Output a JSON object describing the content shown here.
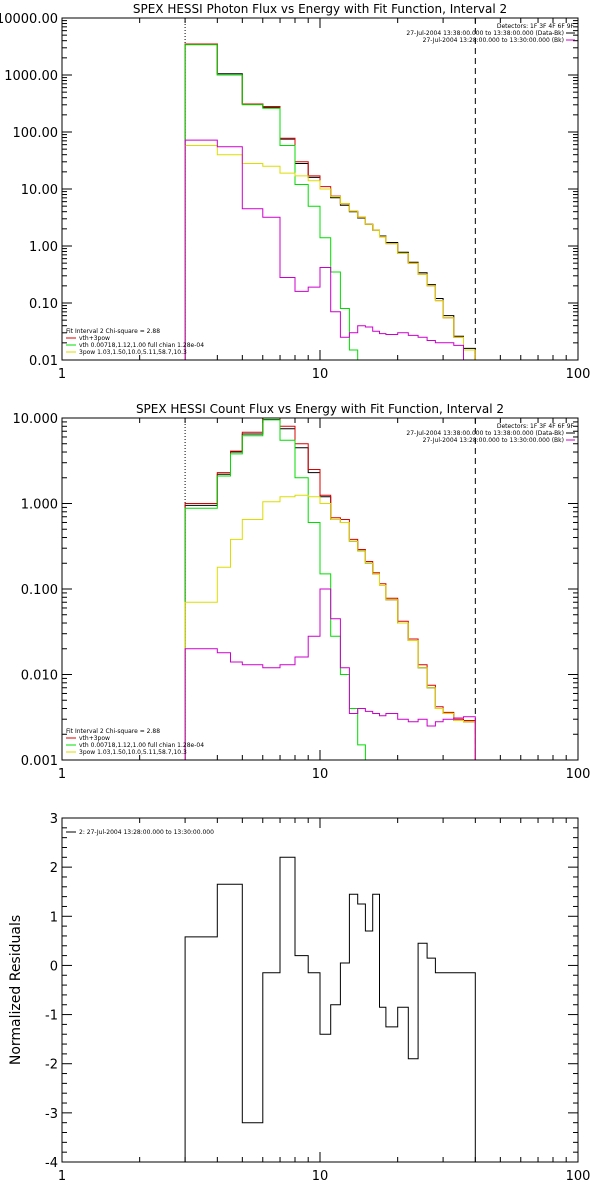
{
  "chart_data": [
    {
      "type": "line",
      "title": "SPEX HESSI Photon Flux vs Energy with Fit Function, Interval 2",
      "xscale": "log",
      "yscale": "log",
      "xlim": [
        1,
        100
      ],
      "ylim": [
        0.01,
        10000
      ],
      "x_ticks": [
        "1",
        "10",
        "100"
      ],
      "y_ticks": [
        {
          "v": 0.01,
          "label": "0.01"
        },
        {
          "v": 0.1,
          "label": "0.10"
        },
        {
          "v": 1,
          "label": "1.00"
        },
        {
          "v": 10,
          "label": "10.00"
        },
        {
          "v": 100,
          "label": "100.00"
        },
        {
          "v": 1000,
          "label": "1000.00"
        },
        {
          "v": 10000,
          "label": "10000.00"
        }
      ],
      "legend_right": [
        {
          "text": "Detectors: 1F 3F 4F 6F 9F",
          "color": ""
        },
        {
          "text": "27-Jul-2004 13:38:00.000 to 13:38:00.000 (Data-Bk)",
          "color": "#000000"
        },
        {
          "text": "27-Jul-2004 13:28:00.000 to 13:30:00.000 (Bk)",
          "color": "#cc00cc"
        }
      ],
      "legend_left": [
        {
          "text": "Fit Interval 2   Chi-square = 2.88",
          "color": ""
        },
        {
          "text": "vth+3pow",
          "color": "#dd0000"
        },
        {
          "text": "vth 0.00718,1.12,1.00  full chian 1.28e-04",
          "color": "#00dd00"
        },
        {
          "text": "3pow 1.03,1.50,10.0,5.11,58.7,10.3",
          "color": "#dddd00"
        }
      ],
      "vlines": [
        {
          "x": 3,
          "style": "dotted"
        },
        {
          "x": 40,
          "style": "dashed"
        }
      ],
      "edges": [
        3,
        4,
        5,
        6,
        7,
        8,
        9,
        10,
        11,
        12,
        13,
        14,
        15,
        16,
        17,
        18,
        20,
        22,
        24,
        26,
        28,
        30,
        33,
        36,
        40
      ],
      "series": [
        {
          "color": "#000000",
          "values": [
            3500,
            1050,
            310,
            270,
            75,
            28,
            16,
            10,
            7,
            5.2,
            4.0,
            3.1,
            2.4,
            1.9,
            1.5,
            1.15,
            0.78,
            0.52,
            0.34,
            0.21,
            0.12,
            0.06,
            0.026,
            0.016
          ]
        },
        {
          "color": "#dd0000",
          "values": [
            3500,
            1000,
            310,
            280,
            78,
            30,
            17,
            11,
            7.5,
            5.5,
            4.1,
            3.2,
            2.4,
            1.9,
            1.45,
            1.1,
            0.74,
            0.5,
            0.32,
            0.2,
            0.11,
            0.055,
            0.025,
            0.015
          ]
        },
        {
          "color": "#00dd00",
          "values": [
            3400,
            1000,
            300,
            260,
            58,
            12,
            5,
            1.4,
            0.35,
            0.08,
            0.015,
            0.005
          ]
        },
        {
          "color": "#dddd00",
          "values": [
            58,
            40,
            28,
            25,
            19,
            17,
            14,
            10,
            7.4,
            5.5,
            4.1,
            3.2,
            2.4,
            1.9,
            1.45,
            1.1,
            0.74,
            0.5,
            0.32,
            0.2,
            0.11,
            0.055,
            0.025,
            0.015
          ]
        },
        {
          "color": "#cc00cc",
          "values": [
            72,
            55,
            4.5,
            3.2,
            0.28,
            0.16,
            0.19,
            0.42,
            0.07,
            0.025,
            0.03,
            0.04,
            0.038,
            0.032,
            0.029,
            0.028,
            0.03,
            0.027,
            0.025,
            0.022,
            0.02,
            0.02,
            0.018
          ]
        }
      ]
    },
    {
      "type": "line",
      "title": "SPEX HESSI Count Flux vs Energy with Fit Function, Interval 2",
      "xscale": "log",
      "yscale": "log",
      "xlim": [
        1,
        100
      ],
      "ylim": [
        0.001,
        10
      ],
      "x_ticks": [
        "1",
        "10",
        "100"
      ],
      "y_ticks": [
        {
          "v": 0.001,
          "label": "0.001"
        },
        {
          "v": 0.01,
          "label": "0.010"
        },
        {
          "v": 0.1,
          "label": "0.100"
        },
        {
          "v": 1,
          "label": "1.000"
        },
        {
          "v": 10,
          "label": "10.000"
        }
      ],
      "legend_right": [
        {
          "text": "Detectors: 1F 3F 4F 6F 9F",
          "color": ""
        },
        {
          "text": "27-Jul-2004 13:38:00.000 to 13:38:00.000 (Data-Bk)",
          "color": "#000000"
        },
        {
          "text": "27-Jul-2004 13:28:00.000 to 13:30:00.000 (Bk)",
          "color": "#cc00cc"
        }
      ],
      "legend_left": [
        {
          "text": "Fit Interval 2   Chi-square = 2.88",
          "color": ""
        },
        {
          "text": "vth+3pow",
          "color": "#dd0000"
        },
        {
          "text": "vth 0.00718,1.12,1.00  full chian 1.28e-04",
          "color": "#00dd00"
        },
        {
          "text": "3pow 1.03,1.50,10.0,5.11,58.7,10.3",
          "color": "#dddd00"
        }
      ],
      "vlines": [
        {
          "x": 3,
          "style": "dotted"
        },
        {
          "x": 40,
          "style": "dashed"
        }
      ],
      "edges": [
        3,
        3.5,
        4,
        4.5,
        5,
        5.5,
        6,
        7,
        8,
        9,
        10,
        11,
        12,
        13,
        14,
        15,
        16,
        17,
        18,
        20,
        22,
        24,
        26,
        28,
        30,
        33,
        36,
        40
      ],
      "series": [
        {
          "color": "#000000",
          "values": [
            0.95,
            0.95,
            2.2,
            4.0,
            6.5,
            6.5,
            9.6,
            7.5,
            4.5,
            2.3,
            1.2,
            0.65,
            0.6,
            0.36,
            0.28,
            0.2,
            0.15,
            0.11,
            0.075,
            0.04,
            0.025,
            0.012,
            0.007,
            0.004,
            0.0035,
            0.0029,
            0.0028
          ]
        },
        {
          "color": "#dd0000",
          "values": [
            1.0,
            1.0,
            2.3,
            4.1,
            6.8,
            6.8,
            10.0,
            8.0,
            5.0,
            2.5,
            1.25,
            0.68,
            0.65,
            0.38,
            0.29,
            0.21,
            0.155,
            0.115,
            0.078,
            0.042,
            0.026,
            0.013,
            0.0075,
            0.0042,
            0.0036,
            0.003,
            0.0029
          ]
        },
        {
          "color": "#00dd00",
          "values": [
            0.88,
            0.88,
            2.1,
            3.8,
            6.2,
            6.2,
            9.5,
            5.5,
            2.0,
            0.6,
            0.15,
            0.028,
            0.01,
            0.004,
            0.0015,
            0.0008
          ]
        },
        {
          "color": "#dddd00",
          "values": [
            0.07,
            0.07,
            0.18,
            0.38,
            0.65,
            0.65,
            1.05,
            1.2,
            1.25,
            1.2,
            1.0,
            0.65,
            0.6,
            0.36,
            0.28,
            0.2,
            0.15,
            0.11,
            0.075,
            0.04,
            0.025,
            0.012,
            0.007,
            0.004,
            0.0035,
            0.0029,
            0.0028
          ]
        },
        {
          "color": "#cc00cc",
          "values": [
            0.02,
            0.02,
            0.018,
            0.014,
            0.013,
            0.013,
            0.012,
            0.013,
            0.016,
            0.028,
            0.1,
            0.045,
            0.012,
            0.0035,
            0.004,
            0.0037,
            0.0035,
            0.0033,
            0.0035,
            0.003,
            0.0028,
            0.003,
            0.0025,
            0.0028,
            0.003,
            0.0031,
            0.0032
          ]
        }
      ]
    },
    {
      "type": "line",
      "title": "",
      "ylabel": "Normalized Residuals",
      "xscale": "log",
      "yscale": "linear",
      "xlim": [
        1,
        100
      ],
      "ylim": [
        -4,
        3
      ],
      "x_ticks": [
        "1",
        "10",
        "100"
      ],
      "y_ticks": [
        {
          "v": -4,
          "label": "-4"
        },
        {
          "v": -3,
          "label": "-3"
        },
        {
          "v": -2,
          "label": "-2"
        },
        {
          "v": -1,
          "label": "-1"
        },
        {
          "v": 0,
          "label": "0"
        },
        {
          "v": 1,
          "label": "1"
        },
        {
          "v": 2,
          "label": "2"
        },
        {
          "v": 3,
          "label": "3"
        }
      ],
      "legend_left": [
        {
          "text": "2: 27-Jul-2004 13:28:00.000 to 13:30:00.000",
          "color": "#000000"
        }
      ],
      "edges": [
        3,
        3.5,
        4,
        4.5,
        5,
        5.5,
        6,
        7,
        8,
        9,
        10,
        11,
        12,
        13,
        14,
        15,
        16,
        17,
        18,
        20,
        22,
        24,
        26,
        28,
        30,
        33,
        36,
        40
      ],
      "series": [
        {
          "color": "#000000",
          "values": [
            0.58,
            0.58,
            1.65,
            1.65,
            -3.2,
            -3.2,
            -0.15,
            2.2,
            0.2,
            -0.15,
            -1.4,
            -0.8,
            0.05,
            1.45,
            1.25,
            0.7,
            1.45,
            -0.85,
            -1.25,
            -0.85,
            -1.9,
            0.45,
            0.15,
            -0.15,
            -0.15,
            -0.15,
            -0.15
          ]
        }
      ]
    }
  ]
}
